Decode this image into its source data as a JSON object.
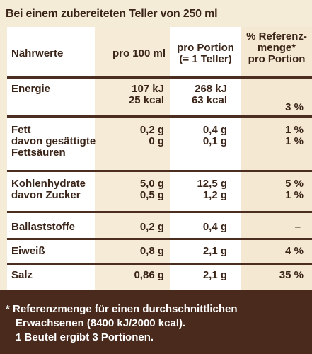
{
  "header": {
    "title": "Bei einem zubereiteten Teller von 250 ml"
  },
  "columns": {
    "c1": "Nährwerte",
    "c2": "pro 100 ml",
    "c3_line1": "pro Portion",
    "c3_line2": "(= 1 Teller)",
    "c4_line1": "% Referenz-",
    "c4_line2": "menge*",
    "c4_line3": "pro Portion"
  },
  "rows": {
    "energie": {
      "label": "Energie",
      "p100_kj": "107 kJ",
      "p100_kcal": "25 kcal",
      "por_kj": "268 kJ",
      "por_kcal": "63 kcal",
      "ref_kcal": "3 %"
    },
    "fett": {
      "label1": "Fett",
      "label2": "davon gesättigte",
      "label3": "Fettsäuren",
      "p100_a": "0,2 g",
      "p100_b": "0 g",
      "por_a": "0,4 g",
      "por_b": "0,1 g",
      "ref_a": "1 %",
      "ref_b": "1 %"
    },
    "kh": {
      "label1": "Kohlenhydrate",
      "label2": "davon Zucker",
      "p100_a": "5,0 g",
      "p100_b": "0,5 g",
      "por_a": "12,5 g",
      "por_b": "1,2 g",
      "ref_a": "5 %",
      "ref_b": "1 %"
    },
    "ballast": {
      "label": "Ballaststoffe",
      "p100": "0,2 g",
      "por": "0,4 g",
      "ref": "–"
    },
    "eiweiss": {
      "label": "Eiweiß",
      "p100": "0,8 g",
      "por": "2,1 g",
      "ref": "4 %"
    },
    "salz": {
      "label": "Salz",
      "p100": "0,86 g",
      "por": "2,1 g",
      "ref": "35 %"
    }
  },
  "footer": {
    "line1": "* Referenzmenge für einen durchschnittlichen",
    "line2": "Erwachsenen (8400 kJ/2000 kcal).",
    "line3": "1 Beutel ergibt 3 Portionen."
  },
  "colors": {
    "brown": "#4a2a1c",
    "cream": "#f5ecd8",
    "white": "#ffffff"
  }
}
